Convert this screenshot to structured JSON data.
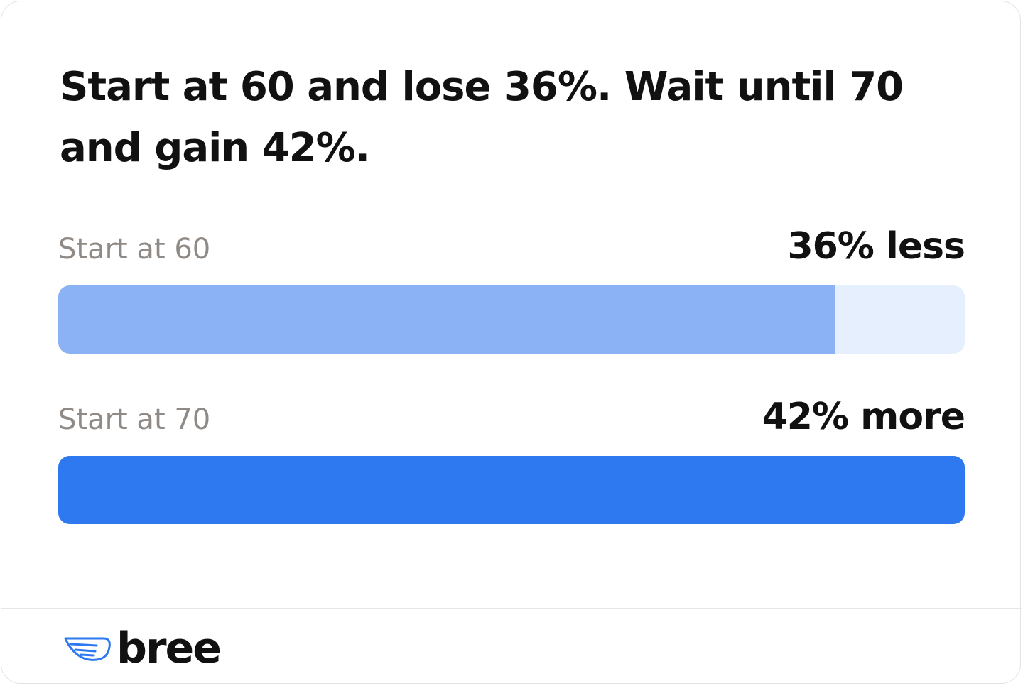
{
  "chart_data": {
    "type": "bar",
    "orientation": "horizontal",
    "title": "Start at 60 and lose 36%. Wait until 70 and gain 42%.",
    "categories": [
      "Start at 60",
      "Start at 70"
    ],
    "values": [
      60,
      70
    ],
    "annotations": [
      "36% less",
      "42% more"
    ],
    "colors": [
      "#8ab2f5",
      "#2e78f0"
    ],
    "track_color": "#e6effd",
    "xlim": [
      0,
      70
    ]
  },
  "footer": {
    "logo": "bree"
  }
}
